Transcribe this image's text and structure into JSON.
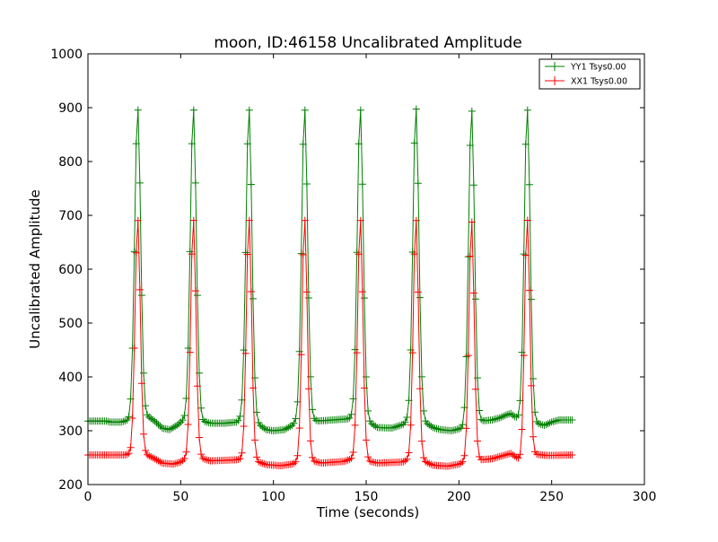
{
  "chart_data": {
    "type": "line",
    "title": "moon, ID:46158 Uncalibrated Amplitude",
    "xlabel": "Time (seconds)",
    "ylabel": "Uncalibrated Amplitude",
    "xlim": [
      0,
      300
    ],
    "ylim": [
      200,
      1000
    ],
    "xticks": [
      0,
      50,
      100,
      150,
      200,
      250,
      300
    ],
    "yticks": [
      200,
      300,
      400,
      500,
      600,
      700,
      800,
      900,
      1000
    ],
    "grid": false,
    "legend_position": "top-right",
    "series": [
      {
        "name": "YY1 Tsys0.00",
        "color": "#008000",
        "marker": "+",
        "sample_interval": 1,
        "x_start": 0,
        "x_end": 261,
        "baseline": [
          [
            0,
            318
          ],
          [
            10,
            318
          ],
          [
            12,
            316
          ],
          [
            18,
            316
          ],
          [
            22,
            320
          ],
          [
            24,
            330
          ],
          [
            30,
            330
          ],
          [
            33,
            325
          ],
          [
            36,
            318
          ],
          [
            40,
            305
          ],
          [
            44,
            302
          ],
          [
            48,
            310
          ],
          [
            52,
            322
          ],
          [
            54,
            330
          ],
          [
            60,
            330
          ],
          [
            62,
            318
          ],
          [
            66,
            314
          ],
          [
            74,
            314
          ],
          [
            80,
            316
          ],
          [
            84,
            325
          ],
          [
            90,
            320
          ],
          [
            92,
            312
          ],
          [
            96,
            302
          ],
          [
            100,
            300
          ],
          [
            106,
            302
          ],
          [
            110,
            310
          ],
          [
            114,
            322
          ],
          [
            120,
            322
          ],
          [
            124,
            318
          ],
          [
            132,
            320
          ],
          [
            140,
            322
          ],
          [
            144,
            326
          ],
          [
            150,
            322
          ],
          [
            152,
            315
          ],
          [
            156,
            306
          ],
          [
            164,
            305
          ],
          [
            170,
            312
          ],
          [
            174,
            325
          ],
          [
            180,
            322
          ],
          [
            182,
            315
          ],
          [
            186,
            306
          ],
          [
            190,
            302
          ],
          [
            196,
            300
          ],
          [
            202,
            305
          ],
          [
            206,
            320
          ],
          [
            210,
            320
          ],
          [
            212,
            318
          ],
          [
            218,
            320
          ],
          [
            222,
            324
          ],
          [
            226,
            330
          ],
          [
            228,
            332
          ],
          [
            230,
            326
          ],
          [
            234,
            320
          ],
          [
            240,
            318
          ],
          [
            242,
            314
          ],
          [
            246,
            310
          ],
          [
            250,
            316
          ],
          [
            254,
            320
          ],
          [
            261,
            320
          ]
        ],
        "peaks": [
          {
            "center": 26.8,
            "height": 900
          },
          {
            "center": 56.8,
            "height": 900
          },
          {
            "center": 86.8,
            "height": 900
          },
          {
            "center": 116.8,
            "height": 900
          },
          {
            "center": 146.8,
            "height": 900
          },
          {
            "center": 176.8,
            "height": 902
          },
          {
            "center": 206.8,
            "height": 898
          },
          {
            "center": 236.8,
            "height": 900
          }
        ],
        "peak_width": 1.6
      },
      {
        "name": "XX1 Tsys0.00",
        "color": "#ff0000",
        "marker": "+",
        "sample_interval": 1,
        "x_start": 0,
        "x_end": 261,
        "baseline": [
          [
            0,
            255
          ],
          [
            20,
            255
          ],
          [
            23,
            258
          ],
          [
            24,
            265
          ],
          [
            30,
            262
          ],
          [
            32,
            255
          ],
          [
            36,
            248
          ],
          [
            40,
            240
          ],
          [
            46,
            238
          ],
          [
            50,
            242
          ],
          [
            54,
            252
          ],
          [
            60,
            255
          ],
          [
            62,
            248
          ],
          [
            66,
            244
          ],
          [
            80,
            246
          ],
          [
            84,
            248
          ],
          [
            90,
            250
          ],
          [
            92,
            242
          ],
          [
            96,
            237
          ],
          [
            104,
            235
          ],
          [
            110,
            238
          ],
          [
            114,
            244
          ],
          [
            120,
            248
          ],
          [
            122,
            243
          ],
          [
            126,
            240
          ],
          [
            138,
            243
          ],
          [
            144,
            250
          ],
          [
            150,
            250
          ],
          [
            152,
            243
          ],
          [
            156,
            240
          ],
          [
            170,
            242
          ],
          [
            174,
            250
          ],
          [
            180,
            248
          ],
          [
            182,
            242
          ],
          [
            186,
            236
          ],
          [
            194,
            234
          ],
          [
            200,
            238
          ],
          [
            204,
            244
          ],
          [
            210,
            248
          ],
          [
            212,
            246
          ],
          [
            218,
            248
          ],
          [
            226,
            256
          ],
          [
            228,
            258
          ],
          [
            232,
            248
          ],
          [
            234,
            242
          ],
          [
            240,
            256
          ],
          [
            242,
            256
          ],
          [
            248,
            254
          ],
          [
            261,
            255
          ]
        ],
        "peaks": [
          {
            "center": 26.8,
            "height": 695
          },
          {
            "center": 56.8,
            "height": 695
          },
          {
            "center": 86.8,
            "height": 695
          },
          {
            "center": 116.8,
            "height": 695
          },
          {
            "center": 146.8,
            "height": 695
          },
          {
            "center": 176.8,
            "height": 695
          },
          {
            "center": 206.8,
            "height": 692
          },
          {
            "center": 236.8,
            "height": 695
          }
        ],
        "peak_width": 1.4
      }
    ]
  }
}
